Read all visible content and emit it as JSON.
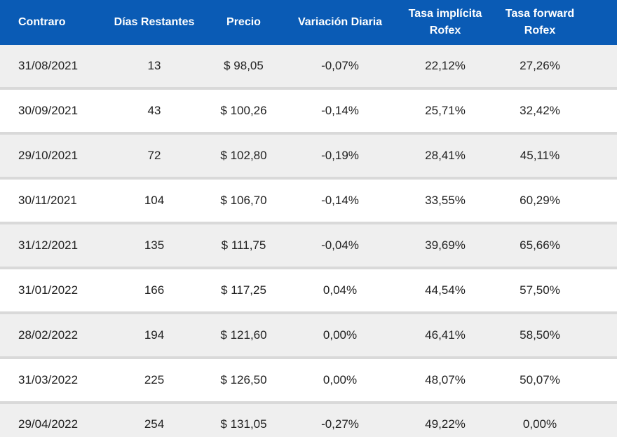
{
  "table": {
    "headers": [
      "Contraro",
      "Días Restantes",
      "Precio",
      "Variación Diaria",
      "Tasa implícita\nRofex",
      "Tasa forward\nRofex"
    ],
    "rows": [
      [
        "31/08/2021",
        "13",
        "$ 98,05",
        "-0,07%",
        "22,12%",
        "27,26%"
      ],
      [
        "30/09/2021",
        "43",
        "$ 100,26",
        "-0,14%",
        "25,71%",
        "32,42%"
      ],
      [
        "29/10/2021",
        "72",
        "$ 102,80",
        "-0,19%",
        "28,41%",
        "45,11%"
      ],
      [
        "30/11/2021",
        "104",
        "$ 106,70",
        "-0,14%",
        "33,55%",
        "60,29%"
      ],
      [
        "31/12/2021",
        "135",
        "$ 111,75",
        "-0,04%",
        "39,69%",
        "65,66%"
      ],
      [
        "31/01/2022",
        "166",
        "$ 117,25",
        "0,04%",
        "44,54%",
        "57,50%"
      ],
      [
        "28/02/2022",
        "194",
        "$ 121,60",
        "0,00%",
        "46,41%",
        "58,50%"
      ],
      [
        "31/03/2022",
        "225",
        "$ 126,50",
        "0,00%",
        "48,07%",
        "50,07%"
      ],
      [
        "29/04/2022",
        "254",
        "$ 131,05",
        "-0,27%",
        "49,22%",
        "0,00%"
      ]
    ]
  },
  "colors": {
    "header_bg": "#0a5bb5",
    "row_odd_bg": "#efefef",
    "row_even_bg": "#ffffff",
    "divider": "#d9d9d9"
  }
}
